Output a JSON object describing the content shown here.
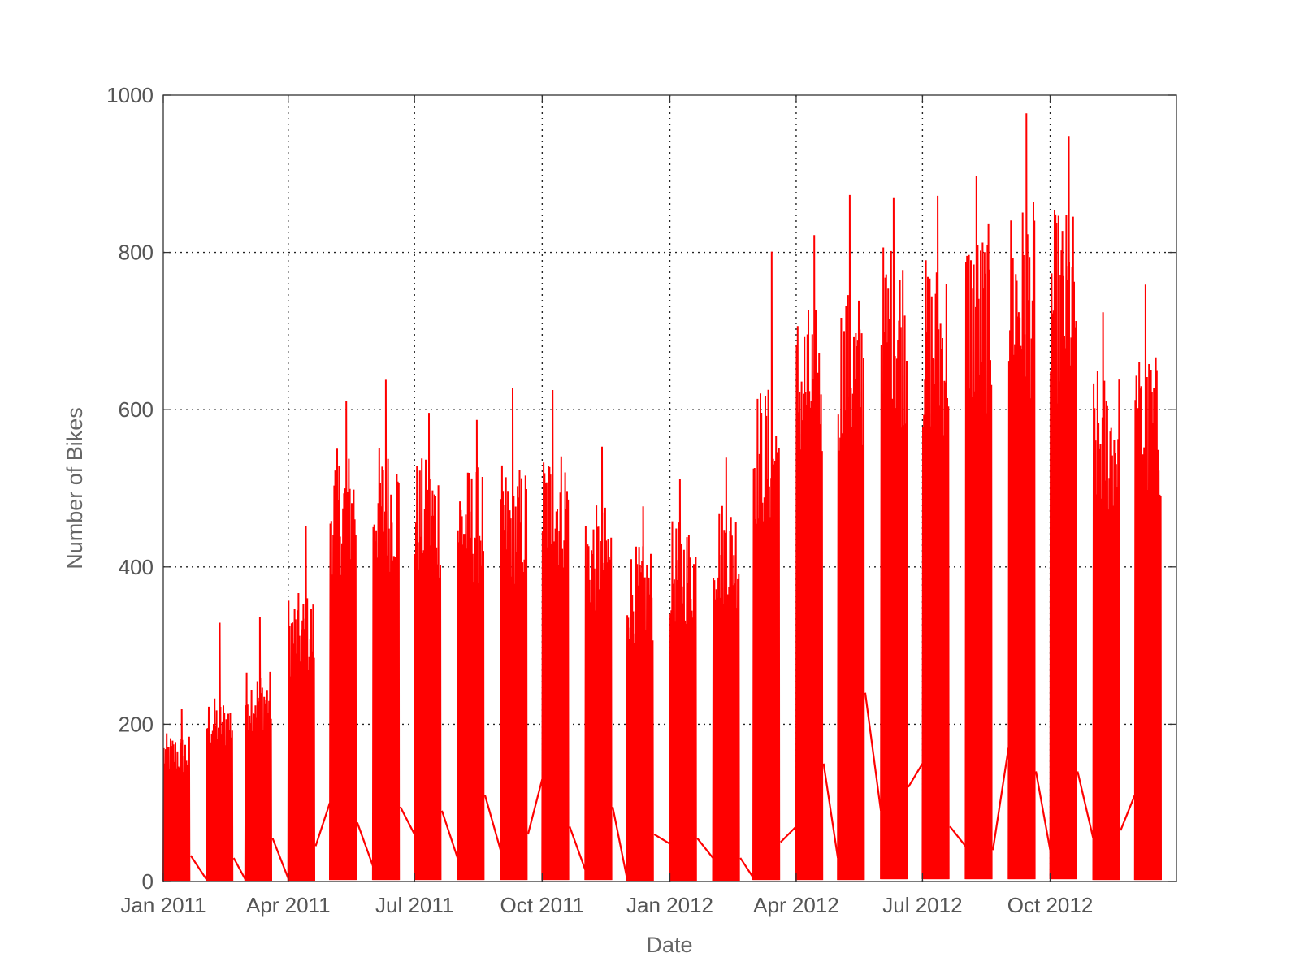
{
  "chart_data": {
    "type": "line",
    "title": "",
    "xlabel": "Date",
    "ylabel": "Number of Bikes",
    "xlim": [
      "2011-01-01",
      "2012-12-31"
    ],
    "ylim": [
      0,
      1000
    ],
    "grid": true,
    "legend": "none",
    "x_ticks": [
      {
        "date": "2011-01-01",
        "label": "Jan 2011"
      },
      {
        "date": "2011-04-01",
        "label": "Apr 2011"
      },
      {
        "date": "2011-07-01",
        "label": "Jul 2011"
      },
      {
        "date": "2011-10-01",
        "label": "Oct 2011"
      },
      {
        "date": "2012-01-01",
        "label": "Jan 2012"
      },
      {
        "date": "2012-04-01",
        "label": "Apr 2012"
      },
      {
        "date": "2012-07-01",
        "label": "Jul 2012"
      },
      {
        "date": "2012-10-01",
        "label": "Oct 2012"
      }
    ],
    "y_ticks": [
      {
        "value": 0,
        "label": "0"
      },
      {
        "value": 200,
        "label": "200"
      },
      {
        "value": 400,
        "label": "400"
      },
      {
        "value": 600,
        "label": "600"
      },
      {
        "value": 800,
        "label": "800"
      },
      {
        "value": 1000,
        "label": "1000"
      }
    ],
    "series": [
      {
        "color": "#ff0000",
        "sampled": "hourly counts recorded on days 1-19 of each month; segments between months are straight lines",
        "monthly_bursts": [
          {
            "start": "2011-01-01",
            "end": "2011-01-19",
            "peak": 219,
            "typical_high": 185,
            "low": 1
          },
          {
            "start": "2011-02-01",
            "end": "2011-02-19",
            "peak": 329,
            "typical_high": 230,
            "low": 1
          },
          {
            "start": "2011-03-01",
            "end": "2011-03-19",
            "peak": 336,
            "typical_high": 265,
            "low": 1
          },
          {
            "start": "2011-04-01",
            "end": "2011-04-19",
            "peak": 452,
            "typical_high": 360,
            "low": 1
          },
          {
            "start": "2011-05-01",
            "end": "2011-05-19",
            "peak": 611,
            "typical_high": 540,
            "low": 2
          },
          {
            "start": "2011-06-01",
            "end": "2011-06-19",
            "peak": 638,
            "typical_high": 545,
            "low": 2
          },
          {
            "start": "2011-07-01",
            "end": "2011-07-19",
            "peak": 596,
            "typical_high": 530,
            "low": 2
          },
          {
            "start": "2011-08-01",
            "end": "2011-08-19",
            "peak": 587,
            "typical_high": 520,
            "low": 2
          },
          {
            "start": "2011-09-01",
            "end": "2011-09-19",
            "peak": 628,
            "typical_high": 520,
            "low": 2
          },
          {
            "start": "2011-10-01",
            "end": "2011-10-19",
            "peak": 625,
            "typical_high": 545,
            "low": 2
          },
          {
            "start": "2011-11-01",
            "end": "2011-11-19",
            "peak": 553,
            "typical_high": 470,
            "low": 2
          },
          {
            "start": "2011-12-01",
            "end": "2011-12-19",
            "peak": 477,
            "typical_high": 420,
            "low": 1
          },
          {
            "start": "2012-01-01",
            "end": "2012-01-19",
            "peak": 512,
            "typical_high": 450,
            "low": 1
          },
          {
            "start": "2012-02-01",
            "end": "2012-02-19",
            "peak": 539,
            "typical_high": 480,
            "low": 1
          },
          {
            "start": "2012-03-01",
            "end": "2012-03-19",
            "peak": 801,
            "typical_high": 620,
            "low": 2
          },
          {
            "start": "2012-04-01",
            "end": "2012-04-19",
            "peak": 822,
            "typical_high": 720,
            "low": 2
          },
          {
            "start": "2012-05-01",
            "end": "2012-05-19",
            "peak": 873,
            "typical_high": 740,
            "low": 2
          },
          {
            "start": "2012-06-01",
            "end": "2012-06-19",
            "peak": 869,
            "typical_high": 800,
            "low": 3
          },
          {
            "start": "2012-07-01",
            "end": "2012-07-19",
            "peak": 872,
            "typical_high": 780,
            "low": 3
          },
          {
            "start": "2012-08-01",
            "end": "2012-08-19",
            "peak": 897,
            "typical_high": 820,
            "low": 3
          },
          {
            "start": "2012-09-01",
            "end": "2012-09-19",
            "peak": 977,
            "typical_high": 850,
            "low": 3
          },
          {
            "start": "2012-10-01",
            "end": "2012-10-19",
            "peak": 948,
            "typical_high": 840,
            "low": 3
          },
          {
            "start": "2012-11-01",
            "end": "2012-11-19",
            "peak": 724,
            "typical_high": 640,
            "low": 2
          },
          {
            "start": "2012-12-01",
            "end": "2012-12-19",
            "peak": 759,
            "typical_high": 660,
            "low": 2
          }
        ],
        "inter_month_segments": [
          {
            "from": {
              "date": "2011-01-19",
              "value": 33
            },
            "to": {
              "date": "2011-02-01",
              "value": 3
            }
          },
          {
            "from": {
              "date": "2011-02-19",
              "value": 30
            },
            "to": {
              "date": "2011-03-01",
              "value": 3
            }
          },
          {
            "from": {
              "date": "2011-03-19",
              "value": 55
            },
            "to": {
              "date": "2011-04-01",
              "value": 4
            }
          },
          {
            "from": {
              "date": "2011-04-19",
              "value": 45
            },
            "to": {
              "date": "2011-05-01",
              "value": 100
            }
          },
          {
            "from": {
              "date": "2011-05-19",
              "value": 75
            },
            "to": {
              "date": "2011-06-01",
              "value": 20
            }
          },
          {
            "from": {
              "date": "2011-06-19",
              "value": 95
            },
            "to": {
              "date": "2011-07-01",
              "value": 60
            }
          },
          {
            "from": {
              "date": "2011-07-19",
              "value": 90
            },
            "to": {
              "date": "2011-08-01",
              "value": 30
            }
          },
          {
            "from": {
              "date": "2011-08-19",
              "value": 110
            },
            "to": {
              "date": "2011-09-01",
              "value": 40
            }
          },
          {
            "from": {
              "date": "2011-09-19",
              "value": 60
            },
            "to": {
              "date": "2011-10-01",
              "value": 130
            }
          },
          {
            "from": {
              "date": "2011-10-19",
              "value": 70
            },
            "to": {
              "date": "2011-11-01",
              "value": 15
            }
          },
          {
            "from": {
              "date": "2011-11-19",
              "value": 95
            },
            "to": {
              "date": "2011-12-01",
              "value": 5
            }
          },
          {
            "from": {
              "date": "2011-12-19",
              "value": 60
            },
            "to": {
              "date": "2012-01-01",
              "value": 48
            }
          },
          {
            "from": {
              "date": "2012-01-19",
              "value": 55
            },
            "to": {
              "date": "2012-02-01",
              "value": 30
            }
          },
          {
            "from": {
              "date": "2012-02-19",
              "value": 30
            },
            "to": {
              "date": "2012-03-01",
              "value": 5
            }
          },
          {
            "from": {
              "date": "2012-03-19",
              "value": 50
            },
            "to": {
              "date": "2012-04-01",
              "value": 70
            }
          },
          {
            "from": {
              "date": "2012-04-19",
              "value": 150
            },
            "to": {
              "date": "2012-05-01",
              "value": 30
            }
          },
          {
            "from": {
              "date": "2012-05-19",
              "value": 240
            },
            "to": {
              "date": "2012-06-01",
              "value": 90
            }
          },
          {
            "from": {
              "date": "2012-06-19",
              "value": 120
            },
            "to": {
              "date": "2012-07-01",
              "value": 150
            }
          },
          {
            "from": {
              "date": "2012-07-19",
              "value": 70
            },
            "to": {
              "date": "2012-08-01",
              "value": 45
            }
          },
          {
            "from": {
              "date": "2012-08-19",
              "value": 40
            },
            "to": {
              "date": "2012-09-01",
              "value": 170
            }
          },
          {
            "from": {
              "date": "2012-09-19",
              "value": 140
            },
            "to": {
              "date": "2012-10-01",
              "value": 40
            }
          },
          {
            "from": {
              "date": "2012-10-19",
              "value": 140
            },
            "to": {
              "date": "2012-11-01",
              "value": 55
            }
          },
          {
            "from": {
              "date": "2012-11-19",
              "value": 65
            },
            "to": {
              "date": "2012-12-01",
              "value": 110
            }
          }
        ]
      }
    ]
  }
}
